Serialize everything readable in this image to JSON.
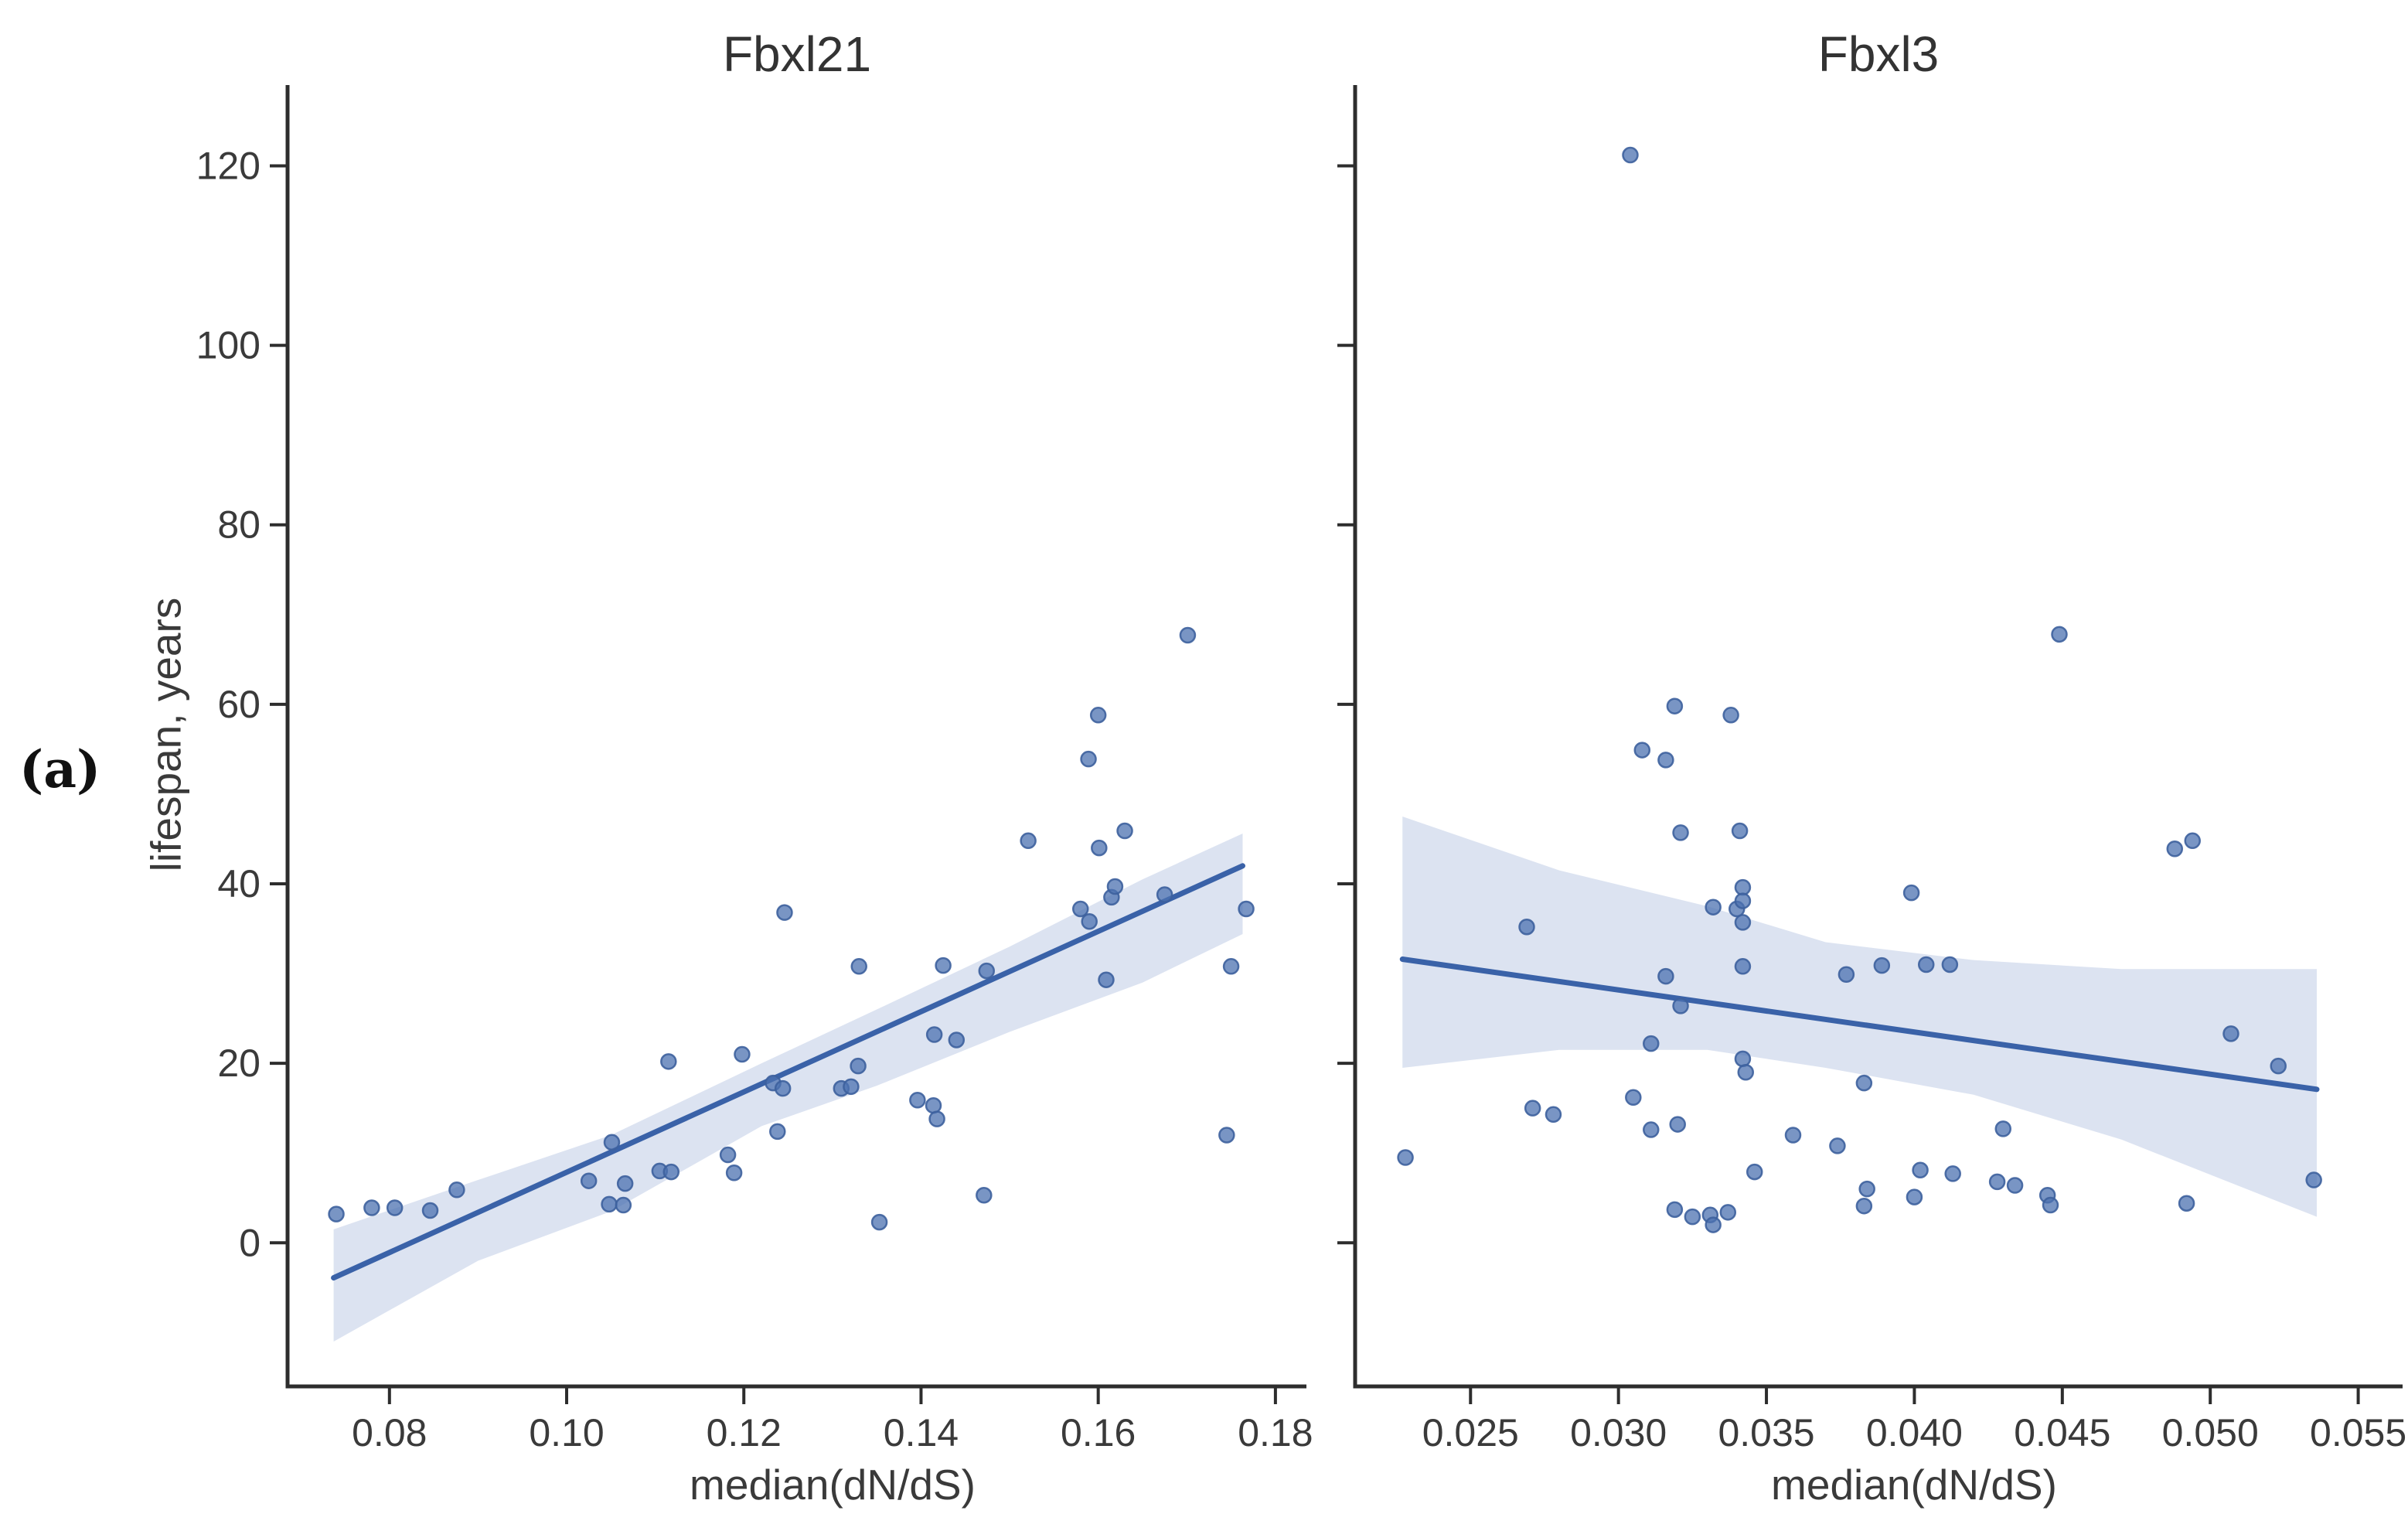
{
  "figure_label": "(a)",
  "colors": {
    "point_fill": "#4c72b0",
    "point_edge": "#3d619d",
    "regression_line": "#3a62a8",
    "confidence_band": "#dce3f1",
    "spine": "#2d2d2d",
    "tick": "#2d2d2d",
    "text": "#3a3a3a",
    "background": "#ffffff"
  },
  "chart_data": [
    {
      "type": "scatter",
      "title": "Fbxl21",
      "xlabel": "median(dN/dS)",
      "ylabel": "lifespan, years",
      "xlim": [
        0.0685,
        0.1835
      ],
      "ylim": [
        -16,
        129
      ],
      "grid": false,
      "legend": null,
      "x_ticks": [
        0.08,
        0.1,
        0.12,
        0.14,
        0.16,
        0.18
      ],
      "x_tick_labels": [
        "0.08",
        "0.10",
        "0.12",
        "0.14",
        "0.16",
        "0.18"
      ],
      "y_ticks": [
        0,
        20,
        40,
        60,
        80,
        100,
        120
      ],
      "y_tick_labels": [
        "0",
        "20",
        "40",
        "60",
        "80",
        "100",
        "120"
      ],
      "show_y_tick_labels": true,
      "points": [
        [
          0.074,
          3.2
        ],
        [
          0.078,
          3.9
        ],
        [
          0.0806,
          3.9
        ],
        [
          0.0846,
          3.6
        ],
        [
          0.0876,
          5.9
        ],
        [
          0.1025,
          6.9
        ],
        [
          0.1048,
          4.3
        ],
        [
          0.1051,
          11.2
        ],
        [
          0.1064,
          4.2
        ],
        [
          0.1066,
          6.6
        ],
        [
          0.1105,
          8.0
        ],
        [
          0.1118,
          7.9
        ],
        [
          0.1115,
          20.2
        ],
        [
          0.1182,
          9.8
        ],
        [
          0.1189,
          7.8
        ],
        [
          0.1198,
          21.0
        ],
        [
          0.1233,
          17.8
        ],
        [
          0.1244,
          17.2
        ],
        [
          0.1238,
          12.4
        ],
        [
          0.1246,
          36.8
        ],
        [
          0.131,
          17.2
        ],
        [
          0.1321,
          17.4
        ],
        [
          0.1329,
          19.7
        ],
        [
          0.133,
          30.8
        ],
        [
          0.1353,
          2.3
        ],
        [
          0.1396,
          15.9
        ],
        [
          0.1414,
          15.3
        ],
        [
          0.1418,
          13.8
        ],
        [
          0.1415,
          23.2
        ],
        [
          0.144,
          22.6
        ],
        [
          0.1425,
          30.9
        ],
        [
          0.1471,
          5.3
        ],
        [
          0.1474,
          30.3
        ],
        [
          0.1521,
          44.8
        ],
        [
          0.158,
          37.2
        ],
        [
          0.159,
          35.8
        ],
        [
          0.1589,
          53.9
        ],
        [
          0.16,
          58.8
        ],
        [
          0.1601,
          44.0
        ],
        [
          0.1615,
          38.5
        ],
        [
          0.1619,
          39.7
        ],
        [
          0.1609,
          29.3
        ],
        [
          0.163,
          45.9
        ],
        [
          0.1675,
          38.8
        ],
        [
          0.1701,
          67.7
        ],
        [
          0.175,
          30.8
        ],
        [
          0.1745,
          12.0
        ],
        [
          0.1767,
          37.2
        ]
      ],
      "regression_line": {
        "x": [
          0.0737,
          0.1763
        ],
        "y": [
          -3.9,
          42.0
        ]
      },
      "confidence_band": {
        "x": [
          0.0737,
          0.09,
          0.105,
          0.122,
          0.135,
          0.15,
          0.165,
          0.1763
        ],
        "top": [
          1.5,
          7.0,
          12.0,
          20.0,
          26.0,
          33.0,
          40.5,
          45.6
        ],
        "bottom": [
          -11.0,
          -2.0,
          3.5,
          13.0,
          17.5,
          23.5,
          29.0,
          34.4
        ]
      }
    },
    {
      "type": "scatter",
      "title": "Fbxl3",
      "xlabel": "median(dN/dS)",
      "ylabel": "lifespan, years",
      "xlim": [
        0.0211,
        0.0565
      ],
      "ylim": [
        -16,
        129
      ],
      "grid": false,
      "legend": null,
      "x_ticks": [
        0.025,
        0.03,
        0.035,
        0.04,
        0.045,
        0.05,
        0.055
      ],
      "x_tick_labels": [
        "0.025",
        "0.030",
        "0.035",
        "0.040",
        "0.045",
        "0.050",
        "0.055"
      ],
      "y_ticks": [
        0,
        20,
        40,
        60,
        80,
        100,
        120
      ],
      "y_tick_labels": [
        "0",
        "20",
        "40",
        "60",
        "80",
        "100",
        "120"
      ],
      "show_y_tick_labels": false,
      "points": [
        [
          0.0228,
          9.5
        ],
        [
          0.0269,
          35.2
        ],
        [
          0.0271,
          15.0
        ],
        [
          0.0278,
          14.3
        ],
        [
          0.0304,
          121.2
        ],
        [
          0.0305,
          16.2
        ],
        [
          0.0308,
          54.9
        ],
        [
          0.0311,
          22.2
        ],
        [
          0.0311,
          12.6
        ],
        [
          0.0316,
          53.8
        ],
        [
          0.0316,
          29.7
        ],
        [
          0.0319,
          59.8
        ],
        [
          0.032,
          13.2
        ],
        [
          0.0319,
          3.7
        ],
        [
          0.0321,
          45.7
        ],
        [
          0.0321,
          26.4
        ],
        [
          0.0325,
          2.9
        ],
        [
          0.0331,
          3.1
        ],
        [
          0.0332,
          2.0
        ],
        [
          0.0337,
          3.4
        ],
        [
          0.0332,
          37.4
        ],
        [
          0.0338,
          58.8
        ],
        [
          0.034,
          37.2
        ],
        [
          0.0341,
          45.9
        ],
        [
          0.0342,
          39.6
        ],
        [
          0.0342,
          38.1
        ],
        [
          0.0342,
          35.7
        ],
        [
          0.0342,
          30.8
        ],
        [
          0.0342,
          20.5
        ],
        [
          0.0343,
          19.0
        ],
        [
          0.0346,
          7.9
        ],
        [
          0.0359,
          12.0
        ],
        [
          0.0374,
          10.8
        ],
        [
          0.0377,
          29.9
        ],
        [
          0.0383,
          17.8
        ],
        [
          0.0383,
          4.1
        ],
        [
          0.0384,
          6.0
        ],
        [
          0.0389,
          30.9
        ],
        [
          0.0399,
          39.0
        ],
        [
          0.04,
          5.1
        ],
        [
          0.0402,
          8.1
        ],
        [
          0.0404,
          31.0
        ],
        [
          0.0412,
          31.0
        ],
        [
          0.0413,
          7.7
        ],
        [
          0.0428,
          6.8
        ],
        [
          0.043,
          12.7
        ],
        [
          0.0434,
          6.4
        ],
        [
          0.0445,
          5.3
        ],
        [
          0.0446,
          4.2
        ],
        [
          0.0449,
          67.8
        ],
        [
          0.0488,
          43.9
        ],
        [
          0.0492,
          4.4
        ],
        [
          0.0494,
          44.8
        ],
        [
          0.0507,
          23.3
        ],
        [
          0.0523,
          19.7
        ],
        [
          0.0535,
          7.0
        ]
      ],
      "regression_line": {
        "x": [
          0.0227,
          0.0536
        ],
        "y": [
          31.6,
          17.1
        ]
      },
      "confidence_band": {
        "x": [
          0.0227,
          0.028,
          0.033,
          0.037,
          0.042,
          0.047,
          0.0536
        ],
        "top": [
          47.5,
          41.5,
          37.5,
          33.5,
          31.5,
          30.5,
          30.5
        ],
        "bottom": [
          19.5,
          21.5,
          21.5,
          19.5,
          16.5,
          11.5,
          2.9
        ]
      }
    }
  ]
}
